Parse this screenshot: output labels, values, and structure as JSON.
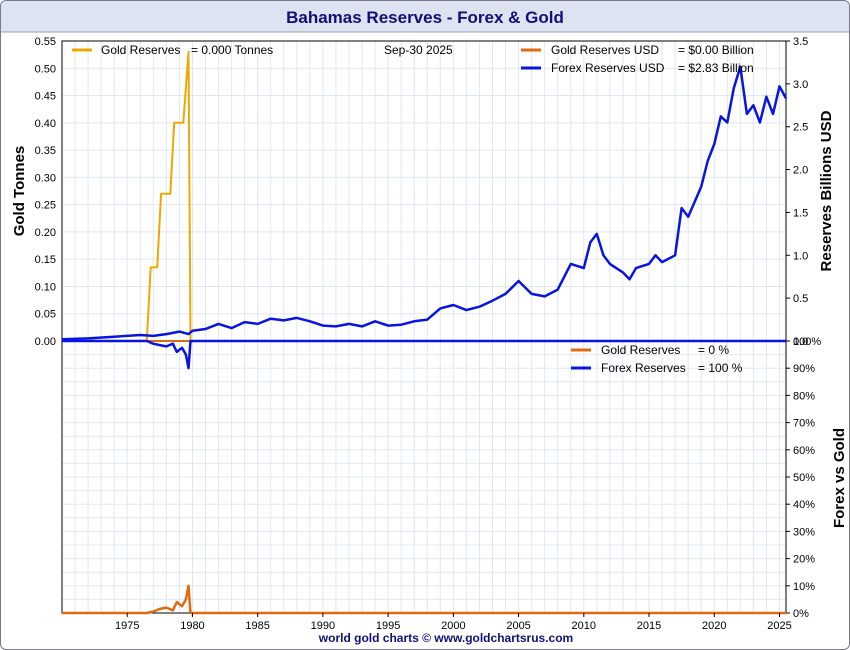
{
  "title": "Bahamas Reserves - Forex & Gold",
  "footer": "world gold charts © www.goldchartsrus.com",
  "date_label": "Sep-30  2025",
  "colors": {
    "gold": "#f0a800",
    "gold_usd": "#e06a10",
    "forex": "#0a14e0",
    "title": "#10107a",
    "grid": "#dfe8f2",
    "header_bg": "#dde3f0"
  },
  "chart_data": [
    {
      "type": "line",
      "panel": "top",
      "ylabel_left": "Gold Tonnes",
      "ylabel_right": "Reserves Billions USD",
      "ylim_left": [
        0,
        0.55
      ],
      "ylim_right": [
        0,
        3.5
      ],
      "xlim": [
        1970,
        2025.5
      ],
      "left_ticks": [
        "0.00",
        "0.05",
        "0.10",
        "0.15",
        "0.20",
        "0.25",
        "0.30",
        "0.35",
        "0.40",
        "0.45",
        "0.50",
        "0.55"
      ],
      "right_ticks": [
        "0.0",
        "0.5",
        "1.0",
        "1.5",
        "2.0",
        "2.5",
        "3.0",
        "3.5"
      ],
      "legend": [
        {
          "label": "Gold Reserves",
          "value": "= 0.000 Tonnes",
          "color": "#f0a800"
        },
        {
          "label": "Gold Reserves USD",
          "value": "= $0.00 Billion",
          "color": "#e06a10"
        },
        {
          "label": "Forex Reserves USD",
          "value": "= $2.83 Billion",
          "color": "#0a14e0"
        }
      ],
      "series": [
        {
          "name": "Gold Reserves",
          "axis": "left",
          "points": [
            [
              1970,
              0
            ],
            [
              1976.5,
              0
            ],
            [
              1976.8,
              0.135
            ],
            [
              1977.3,
              0.135
            ],
            [
              1977.6,
              0.27
            ],
            [
              1978.3,
              0.27
            ],
            [
              1978.6,
              0.4
            ],
            [
              1979.3,
              0.4
            ],
            [
              1979.7,
              0.53
            ],
            [
              1979.85,
              0
            ],
            [
              2025.5,
              0
            ]
          ]
        },
        {
          "name": "Gold Reserves USD",
          "axis": "right",
          "points": [
            [
              1970,
              0
            ],
            [
              2025.5,
              0
            ]
          ]
        },
        {
          "name": "Forex Reserves USD",
          "axis": "right",
          "points": [
            [
              1970,
              0.02
            ],
            [
              1972,
              0.03
            ],
            [
              1974,
              0.05
            ],
            [
              1976,
              0.07
            ],
            [
              1977,
              0.06
            ],
            [
              1978,
              0.08
            ],
            [
              1979,
              0.11
            ],
            [
              1979.7,
              0.08
            ],
            [
              1980,
              0.12
            ],
            [
              1981,
              0.14
            ],
            [
              1982,
              0.2
            ],
            [
              1983,
              0.15
            ],
            [
              1984,
              0.22
            ],
            [
              1985,
              0.2
            ],
            [
              1986,
              0.26
            ],
            [
              1987,
              0.24
            ],
            [
              1988,
              0.27
            ],
            [
              1989,
              0.23
            ],
            [
              1990,
              0.18
            ],
            [
              1991,
              0.17
            ],
            [
              1992,
              0.2
            ],
            [
              1993,
              0.17
            ],
            [
              1994,
              0.23
            ],
            [
              1995,
              0.18
            ],
            [
              1996,
              0.19
            ],
            [
              1997,
              0.23
            ],
            [
              1998,
              0.25
            ],
            [
              1999,
              0.38
            ],
            [
              2000,
              0.42
            ],
            [
              2001,
              0.36
            ],
            [
              2002,
              0.4
            ],
            [
              2003,
              0.47
            ],
            [
              2004,
              0.55
            ],
            [
              2005,
              0.7
            ],
            [
              2006,
              0.55
            ],
            [
              2007,
              0.52
            ],
            [
              2008,
              0.6
            ],
            [
              2009,
              0.9
            ],
            [
              2010,
              0.85
            ],
            [
              2010.5,
              1.15
            ],
            [
              2011,
              1.25
            ],
            [
              2011.5,
              1.0
            ],
            [
              2012,
              0.9
            ],
            [
              2013,
              0.8
            ],
            [
              2013.5,
              0.72
            ],
            [
              2014,
              0.85
            ],
            [
              2015,
              0.9
            ],
            [
              2015.5,
              1.0
            ],
            [
              2016,
              0.92
            ],
            [
              2017,
              1.0
            ],
            [
              2017.5,
              1.55
            ],
            [
              2018,
              1.45
            ],
            [
              2019,
              1.8
            ],
            [
              2019.5,
              2.1
            ],
            [
              2020,
              2.3
            ],
            [
              2020.5,
              2.62
            ],
            [
              2021,
              2.55
            ],
            [
              2021.5,
              2.95
            ],
            [
              2022,
              3.2
            ],
            [
              2022.5,
              2.65
            ],
            [
              2023,
              2.75
            ],
            [
              2023.5,
              2.55
            ],
            [
              2024,
              2.85
            ],
            [
              2024.5,
              2.65
            ],
            [
              2025,
              2.97
            ],
            [
              2025.5,
              2.83
            ]
          ]
        }
      ]
    },
    {
      "type": "line",
      "panel": "bottom",
      "ylabel_right": "Forex vs Gold",
      "ylim": [
        0,
        100
      ],
      "xlim": [
        1970,
        2025.5
      ],
      "x_ticks": [
        "1975",
        "1980",
        "1985",
        "1990",
        "1995",
        "2000",
        "2005",
        "2010",
        "2015",
        "2020",
        "2025"
      ],
      "right_ticks": [
        "0%",
        "10%",
        "20%",
        "30%",
        "40%",
        "50%",
        "60%",
        "70%",
        "80%",
        "90%",
        "100%"
      ],
      "legend": [
        {
          "label": "Gold Reserves",
          "value": "= 0 %",
          "color": "#e06a10"
        },
        {
          "label": "Forex Reserves",
          "value": "= 100 %",
          "color": "#0a14e0"
        }
      ],
      "series": [
        {
          "name": "Gold Reserves",
          "points": [
            [
              1970,
              0
            ],
            [
              1976.5,
              0
            ],
            [
              1977,
              0.5
            ],
            [
              1977.5,
              1.5
            ],
            [
              1978,
              2
            ],
            [
              1978.5,
              1
            ],
            [
              1978.8,
              4
            ],
            [
              1979.2,
              2.5
            ],
            [
              1979.5,
              5
            ],
            [
              1979.7,
              10
            ],
            [
              1979.85,
              0
            ],
            [
              2025.5,
              0
            ]
          ]
        },
        {
          "name": "Forex Reserves",
          "points": [
            [
              1970,
              100
            ],
            [
              1976.5,
              100
            ],
            [
              1977,
              99
            ],
            [
              1977.5,
              98.5
            ],
            [
              1978,
              98
            ],
            [
              1978.5,
              99
            ],
            [
              1978.8,
              96
            ],
            [
              1979.2,
              97.5
            ],
            [
              1979.5,
              95
            ],
            [
              1979.7,
              90
            ],
            [
              1979.85,
              100
            ],
            [
              2025.5,
              100
            ]
          ]
        }
      ]
    }
  ]
}
